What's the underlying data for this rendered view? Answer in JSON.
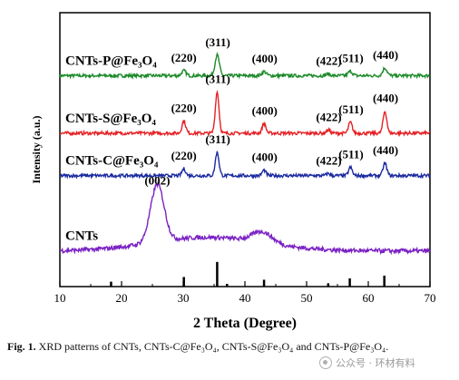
{
  "chart_data": {
    "type": "line",
    "xlabel": "2 Theta (Degree)",
    "ylabel": "Intensity (a.u.)",
    "xlim": [
      10,
      70
    ],
    "x_ticks": [
      10,
      20,
      30,
      40,
      50,
      60,
      70
    ],
    "grid": false,
    "series": [
      {
        "name": "CNTs-P@Fe3O4",
        "display_name": "CNTs-P@Fe₃O₄",
        "color": "#1c8a2a",
        "baseline": 0.77,
        "noise": 0.006,
        "hump": null,
        "peaks": [
          {
            "x": 30.1,
            "h": 0.018,
            "w": 0.35
          },
          {
            "x": 35.5,
            "h": 0.075,
            "w": 0.35
          },
          {
            "x": 43.1,
            "h": 0.015,
            "w": 0.35
          },
          {
            "x": 53.5,
            "h": 0.006,
            "w": 0.35
          },
          {
            "x": 57.1,
            "h": 0.016,
            "w": 0.35
          },
          {
            "x": 62.7,
            "h": 0.028,
            "w": 0.35
          }
        ],
        "peak_labels": [
          {
            "text": "(220)",
            "x": 30.1
          },
          {
            "text": "(311)",
            "x": 35.6
          },
          {
            "text": "(400)",
            "x": 43.2
          },
          {
            "text": "(422)",
            "x": 53.6
          },
          {
            "text": "(511)",
            "x": 57.2
          },
          {
            "text": "(440)",
            "x": 62.8
          }
        ]
      },
      {
        "name": "CNTs-S@Fe3O4",
        "display_name": "CNTs-S@Fe₃O₄",
        "color": "#e52226",
        "baseline": 0.56,
        "noise": 0.006,
        "hump": null,
        "peaks": [
          {
            "x": 30.1,
            "h": 0.045,
            "w": 0.3
          },
          {
            "x": 35.5,
            "h": 0.15,
            "w": 0.3
          },
          {
            "x": 43.1,
            "h": 0.035,
            "w": 0.3
          },
          {
            "x": 53.5,
            "h": 0.012,
            "w": 0.3
          },
          {
            "x": 57.1,
            "h": 0.04,
            "w": 0.3
          },
          {
            "x": 62.7,
            "h": 0.08,
            "w": 0.3
          }
        ],
        "peak_labels": [
          {
            "text": "(220)",
            "x": 30.1
          },
          {
            "text": "(311)",
            "x": 35.6
          },
          {
            "text": "(400)",
            "x": 43.2
          },
          {
            "text": "(422)",
            "x": 53.6
          },
          {
            "text": "(511)",
            "x": 57.2
          },
          {
            "text": "(440)",
            "x": 62.8
          }
        ]
      },
      {
        "name": "CNTs-C@Fe3O4",
        "display_name": "CNTs-C@Fe₃O₄",
        "color": "#1b2aa0",
        "baseline": 0.405,
        "noise": 0.006,
        "hump": null,
        "peaks": [
          {
            "x": 30.1,
            "h": 0.025,
            "w": 0.3
          },
          {
            "x": 35.5,
            "h": 0.085,
            "w": 0.3
          },
          {
            "x": 43.1,
            "h": 0.02,
            "w": 0.3
          },
          {
            "x": 53.5,
            "h": 0.008,
            "w": 0.3
          },
          {
            "x": 57.1,
            "h": 0.03,
            "w": 0.3
          },
          {
            "x": 62.7,
            "h": 0.045,
            "w": 0.3
          }
        ],
        "peak_labels": [
          {
            "text": "(220)",
            "x": 30.1
          },
          {
            "text": "(311)",
            "x": 35.6
          },
          {
            "text": "(400)",
            "x": 43.2
          },
          {
            "text": "(422)",
            "x": 53.6
          },
          {
            "text": "(511)",
            "x": 57.2
          },
          {
            "text": "(440)",
            "x": 62.8
          }
        ]
      },
      {
        "name": "CNTs",
        "display_name": "CNTs",
        "color": "#7b22c4",
        "baseline": 0.13,
        "noise": 0.008,
        "hump": {
          "x": 34,
          "h": 0.05,
          "w": 9
        },
        "peaks": [
          {
            "x": 25.8,
            "h": 0.21,
            "w": 1.1
          },
          {
            "x": 42.8,
            "h": 0.04,
            "w": 1.6
          }
        ],
        "peak_labels": [
          {
            "text": "(002)",
            "x": 25.8
          }
        ]
      }
    ],
    "reference_lines": {
      "color": "#000000",
      "lines": [
        {
          "x": 18.3,
          "h": 0.018
        },
        {
          "x": 30.1,
          "h": 0.035
        },
        {
          "x": 35.5,
          "h": 0.09
        },
        {
          "x": 37.1,
          "h": 0.01
        },
        {
          "x": 43.1,
          "h": 0.025
        },
        {
          "x": 53.5,
          "h": 0.012
        },
        {
          "x": 57.0,
          "h": 0.03
        },
        {
          "x": 62.6,
          "h": 0.04
        }
      ]
    }
  },
  "caption": {
    "prefix": "Fig. 1.",
    "text": "XRD patterns of CNTs, CNTs-C@Fe₃O₄, CNTs-S@Fe₃O₄ and CNTs-P@Fe₃O₄."
  },
  "watermark": {
    "text": "公众号 · 环材有料",
    "icon": "wechat-icon"
  }
}
